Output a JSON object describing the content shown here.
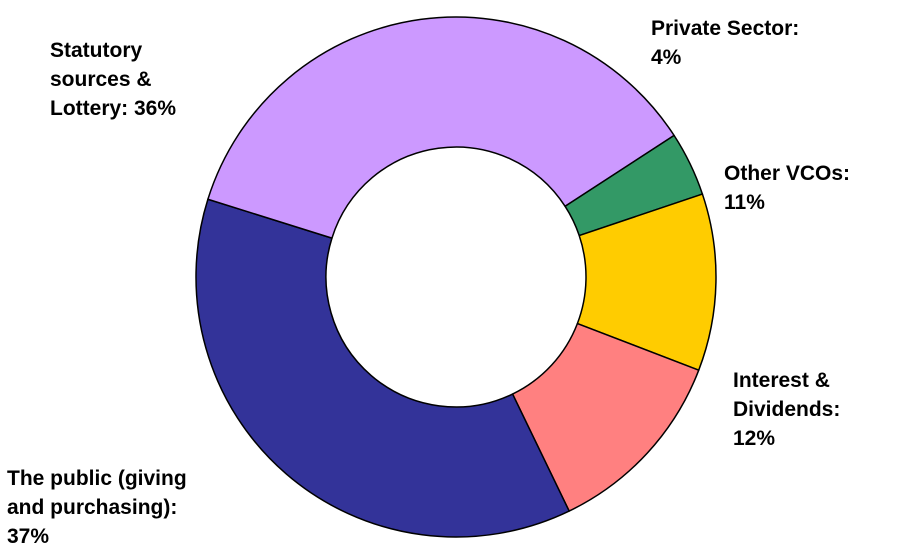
{
  "chart_data": {
    "type": "pie",
    "donut": true,
    "slices": [
      {
        "label": "Private Sector: 4%",
        "name": "Private Sector",
        "value": 4,
        "color": "#339966"
      },
      {
        "label": "Other VCOs: 11%",
        "name": "Other VCOs",
        "value": 11,
        "color": "#FFCC00"
      },
      {
        "label": "Interest & Dividends: 12%",
        "name": "Interest & Dividends",
        "value": 12,
        "color": "#FF8080"
      },
      {
        "label": "The public (giving and purchasing): 37%",
        "name": "The public (giving and purchasing)",
        "value": 37,
        "color": "#333399"
      },
      {
        "label": "Statutory sources & Lottery: 36%",
        "name": "Statutory sources & Lottery",
        "value": 36,
        "color": "#CC99FF"
      }
    ],
    "label_lines": {
      "private": "Private  Sector:\n4%",
      "othervco": "Other VCOs:\n11%",
      "interest": "Interest &\nDividends:\n12%",
      "public": "The public (giving\nand purchasing):\n37%",
      "statutory": "Statutory\nsources &\nLottery: 36%"
    },
    "legend": "none",
    "grid": false
  }
}
